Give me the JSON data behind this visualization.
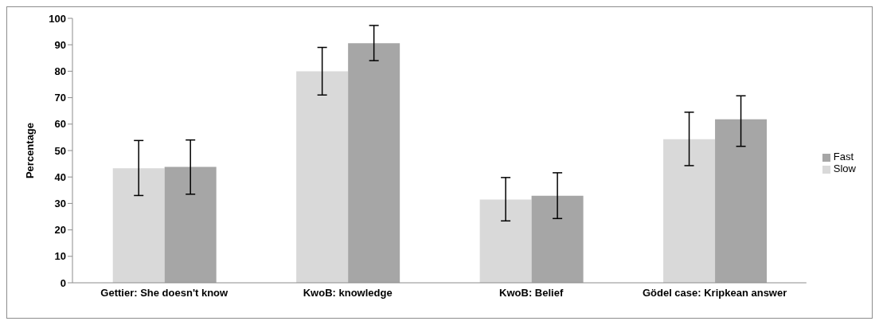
{
  "chart_data": {
    "type": "bar",
    "ylabel": "Percentage",
    "categories": [
      "Gettier: She doesn't know",
      "KwoB: knowledge",
      "KwoB: Belief",
      "Gödel case: Kripkean answer"
    ],
    "series": [
      {
        "name": "Slow",
        "color": "#d9d9d9",
        "values": [
          43.3,
          80,
          31.5,
          54.3
        ],
        "errors": [
          [
            33,
            53.8
          ],
          [
            71,
            89
          ],
          [
            23.4,
            39.8
          ],
          [
            44.3,
            64.5
          ]
        ]
      },
      {
        "name": "Fast",
        "color": "#a6a6a6",
        "values": [
          43.8,
          90.6,
          32.9,
          61.8
        ],
        "errors": [
          [
            33.5,
            54
          ],
          [
            84,
            97.3
          ],
          [
            24.3,
            41.6
          ],
          [
            51.6,
            70.7
          ]
        ]
      }
    ],
    "ylim": [
      0,
      100
    ],
    "yticks": [
      0,
      10,
      20,
      30,
      40,
      50,
      60,
      70,
      80,
      90,
      100
    ],
    "grid": false,
    "legend": "right"
  }
}
